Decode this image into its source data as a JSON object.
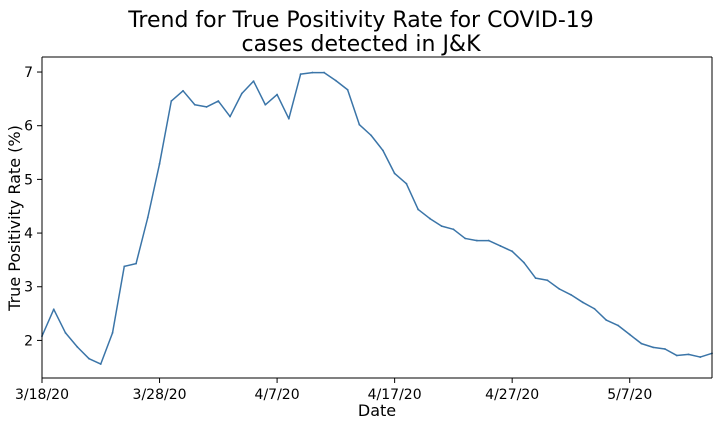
{
  "chart_data": {
    "type": "line",
    "title_lines": [
      "Trend for True Positivity Rate for COVID-19",
      "cases detected in J&K"
    ],
    "xlabel": "Date",
    "ylabel": "True Positivity Rate (%)",
    "x_ticks": [
      {
        "date": "2020-03-18",
        "label": "3/18/20"
      },
      {
        "date": "2020-03-28",
        "label": "3/28/20"
      },
      {
        "date": "2020-04-07",
        "label": "4/7/20"
      },
      {
        "date": "2020-04-17",
        "label": "4/17/20"
      },
      {
        "date": "2020-04-27",
        "label": "4/27/20"
      },
      {
        "date": "2020-05-07",
        "label": "5/7/20"
      }
    ],
    "y_ticks": [
      2,
      3,
      4,
      5,
      6,
      7
    ],
    "xlim": [
      "2020-03-18",
      "2020-05-14"
    ],
    "ylim": [
      1.3,
      7.28
    ],
    "grid": false,
    "line_color": "#3b75a8",
    "series": [
      {
        "x": [
          "2020-03-18",
          "2020-03-19",
          "2020-03-20",
          "2020-03-21",
          "2020-03-22",
          "2020-03-23",
          "2020-03-24",
          "2020-03-25",
          "2020-03-26",
          "2020-03-27",
          "2020-03-28",
          "2020-03-29",
          "2020-03-30",
          "2020-03-31",
          "2020-04-01",
          "2020-04-02",
          "2020-04-03",
          "2020-04-04",
          "2020-04-05",
          "2020-04-06",
          "2020-04-07",
          "2020-04-08",
          "2020-04-09",
          "2020-04-10",
          "2020-04-11",
          "2020-04-12",
          "2020-04-13",
          "2020-04-14",
          "2020-04-15",
          "2020-04-16",
          "2020-04-17",
          "2020-04-18",
          "2020-04-19",
          "2020-04-20",
          "2020-04-21",
          "2020-04-22",
          "2020-04-23",
          "2020-04-24",
          "2020-04-25",
          "2020-04-26",
          "2020-04-27",
          "2020-04-28",
          "2020-04-29",
          "2020-04-30",
          "2020-05-01",
          "2020-05-02",
          "2020-05-03",
          "2020-05-04",
          "2020-05-05",
          "2020-05-06",
          "2020-05-07",
          "2020-05-08",
          "2020-05-09",
          "2020-05-10",
          "2020-05-11",
          "2020-05-12",
          "2020-05-13",
          "2020-05-14"
        ],
        "y": [
          2.08,
          2.58,
          2.14,
          1.88,
          1.66,
          1.56,
          2.14,
          3.38,
          3.43,
          4.29,
          5.29,
          6.46,
          6.65,
          6.39,
          6.35,
          6.46,
          6.17,
          6.6,
          6.83,
          6.39,
          6.58,
          6.13,
          6.96,
          6.99,
          6.99,
          6.84,
          6.67,
          6.02,
          5.82,
          5.54,
          5.11,
          4.92,
          4.44,
          4.27,
          4.13,
          4.07,
          3.9,
          3.86,
          3.86,
          3.76,
          3.66,
          3.45,
          3.16,
          3.12,
          2.96,
          2.85,
          2.71,
          2.59,
          2.38,
          2.28,
          2.11,
          1.94,
          1.87,
          1.84,
          1.72,
          1.74,
          1.69,
          1.76
        ]
      }
    ]
  }
}
